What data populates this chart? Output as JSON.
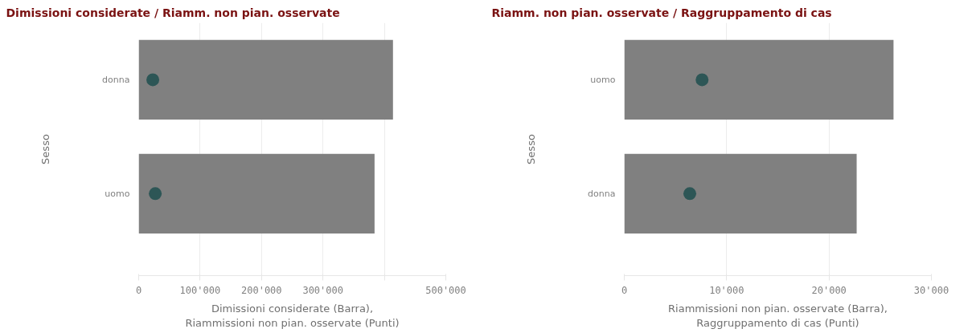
{
  "chart_data": [
    {
      "type": "bar",
      "orientation": "horizontal",
      "title": "Dimissioni considerate / Riamm. non pian. osservate",
      "xlabel": "Dimissioni considerate (Barra),\nRiammissioni non pian. osservate (Punti)",
      "ylabel": "Sesso",
      "categories": [
        "donna",
        "uomo"
      ],
      "xlim": [
        0,
        500000
      ],
      "xticks": [
        0,
        {
          "value": 100000,
          "label": "100'000"
        },
        {
          "value": 200000,
          "label": "200'000"
        },
        {
          "value": 300000,
          "label": "300'000"
        },
        {
          "value": 400000,
          "label": null
        },
        {
          "value": 500000,
          "label": "500'000"
        }
      ],
      "grid": "x",
      "series": [
        {
          "color": "#808080",
          "values": [
            414000,
            384000
          ]
        },
        {
          "type": "scatter",
          "color": "#2d5656",
          "marker": "circle",
          "values": [
            23000,
            27000
          ]
        }
      ]
    },
    {
      "type": "bar",
      "orientation": "horizontal",
      "title": "Riamm. non pian. osservate / Raggruppamento di cas",
      "xlabel": "Riammissioni non pian. osservate (Barra),\nRaggruppamento di cas (Punti)",
      "ylabel": "Sesso",
      "categories": [
        "uomo",
        "donna"
      ],
      "xlim": [
        0,
        30000
      ],
      "xticks": [
        0,
        {
          "value": 10000,
          "label": "10'000"
        },
        {
          "value": 20000,
          "label": "20'000"
        },
        {
          "value": 30000,
          "label": "30'000"
        }
      ],
      "grid": "x",
      "series": [
        {
          "color": "#808080",
          "values": [
            26300,
            22700
          ]
        },
        {
          "type": "scatter",
          "color": "#2d5656",
          "marker": "circle",
          "values": [
            7600,
            6400
          ]
        }
      ]
    }
  ]
}
